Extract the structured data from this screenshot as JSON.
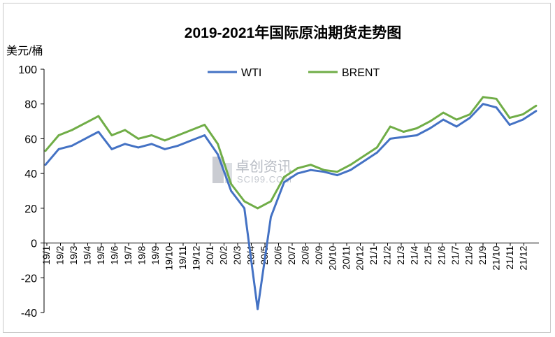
{
  "chart_data": {
    "type": "line",
    "title": "2019-2021年国际原油期货走势图",
    "ylabel": "美元/桶",
    "xlabel": "",
    "ylim": [
      -40,
      100
    ],
    "yticks": [
      -40,
      -20,
      0,
      20,
      40,
      60,
      80,
      100
    ],
    "grid": false,
    "legend_position": "top",
    "xtick_labels": [
      "19/1",
      "19/2",
      "19/3",
      "19/4",
      "19/5",
      "19/6",
      "19/7",
      "19/8",
      "19/9",
      "19/10",
      "19/11",
      "19/12",
      "20/1",
      "20/2",
      "20/3",
      "20/4",
      "20/5",
      "20/6",
      "20/7",
      "20/8",
      "20/9",
      "20/10",
      "20/11",
      "20/12",
      "21/1",
      "21/2",
      "21/3",
      "21/4",
      "21/5",
      "21/6",
      "21/7",
      "21/8",
      "21/9",
      "21/10",
      "21/11",
      "21/12"
    ],
    "x": [
      "19/1",
      "19/2",
      "19/3",
      "19/4",
      "19/5",
      "19/6",
      "19/7",
      "19/8",
      "19/9",
      "19/10",
      "19/11",
      "19/12",
      "20/1",
      "20/2",
      "20/3",
      "20/4",
      "20/4b",
      "20/5",
      "20/6",
      "20/7",
      "20/8",
      "20/9",
      "20/10",
      "20/11",
      "20/12",
      "21/1",
      "21/2",
      "21/3",
      "21/4",
      "21/5",
      "21/6",
      "21/7",
      "21/8",
      "21/9",
      "21/10",
      "21/11",
      "21/12",
      "21/12b"
    ],
    "series": [
      {
        "name": "WTI",
        "color": "#4472c4",
        "values": [
          45,
          54,
          56,
          60,
          64,
          54,
          57,
          55,
          57,
          54,
          56,
          59,
          62,
          51,
          30,
          20,
          -38,
          15,
          35,
          40,
          42,
          41,
          39,
          42,
          47,
          52,
          60,
          61,
          62,
          66,
          71,
          67,
          72,
          80,
          78,
          68,
          71,
          76
        ]
      },
      {
        "name": "BRENT",
        "color": "#70ad47",
        "values": [
          53,
          62,
          65,
          69,
          73,
          62,
          65,
          60,
          62,
          59,
          62,
          65,
          68,
          57,
          34,
          24,
          20,
          24,
          38,
          43,
          45,
          42,
          41,
          45,
          50,
          55,
          67,
          64,
          66,
          70,
          75,
          71,
          74,
          84,
          83,
          72,
          74,
          79
        ]
      }
    ]
  },
  "watermark": {
    "brand": "卓创资讯",
    "site": "SCI99.COM"
  }
}
